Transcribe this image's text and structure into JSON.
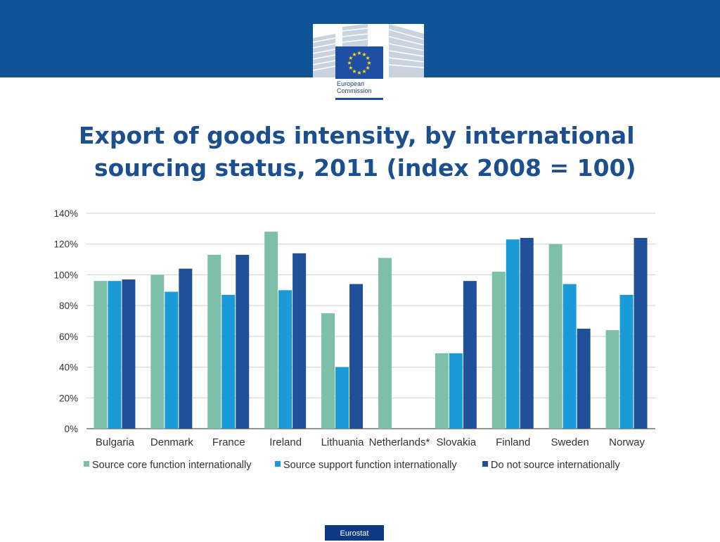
{
  "header": {
    "logo_line1": "European",
    "logo_line2": "Commission",
    "brand_color": "#0e5497"
  },
  "slide": {
    "title_line1": "Export of goods intensity, by international",
    "title_line2": "sourcing status, 2011 (index 2008 = 100)"
  },
  "chart_data": {
    "type": "bar",
    "title": "",
    "xlabel": "",
    "ylabel": "",
    "ylim": [
      0,
      140
    ],
    "yticks": [
      0,
      20,
      40,
      60,
      80,
      100,
      120,
      140
    ],
    "ytick_labels": [
      "0%",
      "20%",
      "40%",
      "60%",
      "80%",
      "100%",
      "120%",
      "140%"
    ],
    "grid": true,
    "legend_position": "bottom",
    "categories": [
      "Bulgaria",
      "Denmark",
      "France",
      "Ireland",
      "Lithuania",
      "Netherlands*",
      "Slovakia",
      "Finland",
      "Sweden",
      "Norway"
    ],
    "series": [
      {
        "name": "Source core function internationally",
        "color": "#7dbfa8",
        "values": [
          96,
          100,
          113,
          128,
          75,
          111,
          49,
          102,
          120,
          64
        ]
      },
      {
        "name": "Source support function internationally",
        "color": "#1a9ad6",
        "values": [
          96,
          89,
          87,
          90,
          40,
          null,
          49,
          123,
          94,
          87
        ]
      },
      {
        "name": "Do not source internationally",
        "color": "#21509a",
        "values": [
          97,
          104,
          113,
          114,
          94,
          null,
          96,
          124,
          65,
          124
        ]
      }
    ]
  },
  "footer": {
    "badge": "Eurostat"
  }
}
